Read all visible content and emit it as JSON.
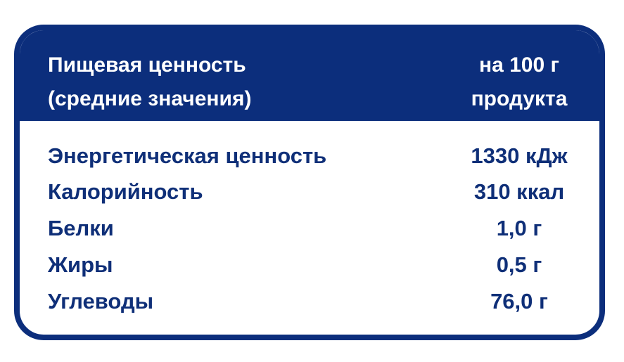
{
  "header": {
    "left": [
      "Пищевая ценность",
      "(средние значения)"
    ],
    "right": [
      "на 100 г",
      "продукта"
    ]
  },
  "rows": [
    {
      "name": "Энергетическая ценность",
      "value": "1330 кДж"
    },
    {
      "name": "Калорийность",
      "value": "310 ккал"
    },
    {
      "name": "Белки",
      "value": "1,0 г"
    },
    {
      "name": "Жиры",
      "value": "0,5 г"
    },
    {
      "name": "Углеводы",
      "value": "76,0 г"
    }
  ],
  "colors": {
    "brand_blue": "#0c2e7c",
    "text_blue": "#0f2f78"
  }
}
